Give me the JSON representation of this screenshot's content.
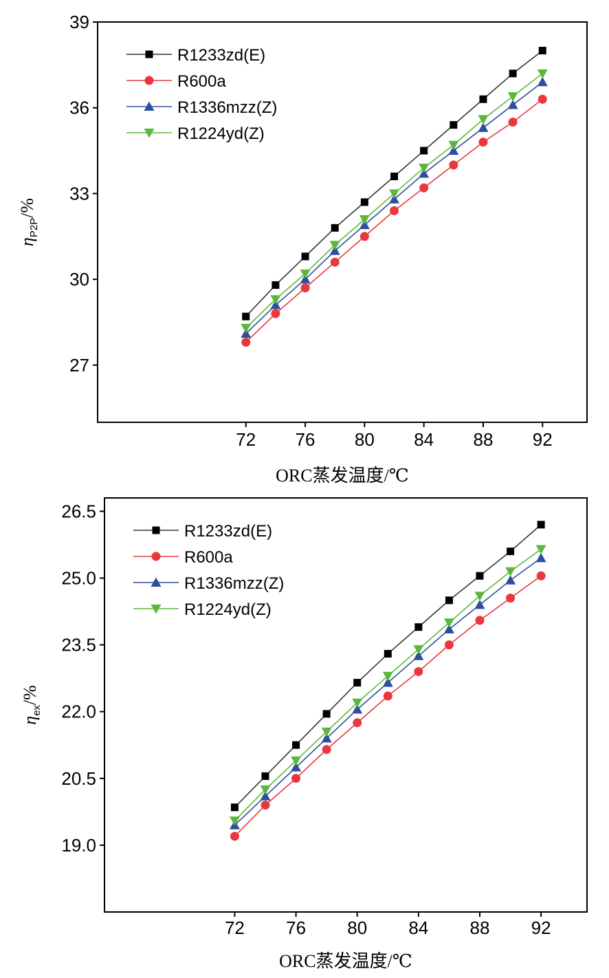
{
  "chart_data": [
    {
      "type": "line",
      "title": "",
      "xlabel": "ORC蒸发温度/℃",
      "ylabel": {
        "symbol": "η",
        "subscript": "P2P",
        "suffix": "/%"
      },
      "xlim": [
        62,
        95
      ],
      "ylim": [
        25,
        39
      ],
      "xticks": [
        72,
        76,
        80,
        84,
        88,
        92
      ],
      "yticks": [
        27,
        30,
        33,
        36,
        39
      ],
      "ytick_labels": [
        "27",
        "30",
        "33",
        "36",
        "39"
      ],
      "legend": "top-left",
      "x": [
        72,
        74,
        76,
        78,
        80,
        82,
        84,
        86,
        88,
        90,
        92
      ],
      "series": [
        {
          "name": "R1233zd(E)",
          "color": "#333333",
          "marker": "square",
          "values": [
            28.7,
            29.8,
            30.8,
            31.8,
            32.7,
            33.6,
            34.5,
            35.4,
            36.3,
            37.2,
            38.0
          ]
        },
        {
          "name": "R600a",
          "color": "#e8383d",
          "marker": "circle",
          "values": [
            27.8,
            28.8,
            29.7,
            30.6,
            31.5,
            32.4,
            33.2,
            34.0,
            34.8,
            35.5,
            36.3
          ]
        },
        {
          "name": "R1336mzz(Z)",
          "color": "#2e4f9e",
          "marker": "triangle-up",
          "values": [
            28.1,
            29.1,
            30.0,
            31.0,
            31.9,
            32.8,
            33.7,
            34.5,
            35.3,
            36.1,
            36.9
          ]
        },
        {
          "name": "R1224yd(Z)",
          "color": "#5cb83c",
          "marker": "triangle-down",
          "values": [
            28.3,
            29.3,
            30.2,
            31.2,
            32.1,
            33.0,
            33.9,
            34.7,
            35.6,
            36.4,
            37.2
          ]
        }
      ]
    },
    {
      "type": "line",
      "title": "",
      "xlabel": "ORC蒸发温度/℃",
      "ylabel": {
        "symbol": "η",
        "subscript": "ex",
        "suffix": "/%"
      },
      "xlim": [
        63.5,
        95
      ],
      "ylim": [
        17.5,
        26.8
      ],
      "xticks": [
        72,
        76,
        80,
        84,
        88,
        92
      ],
      "yticks": [
        19.0,
        20.5,
        22.0,
        23.5,
        25.0,
        26.5
      ],
      "ytick_labels": [
        "19.0",
        "20.5",
        "22.0",
        "23.5",
        "25.0",
        "26.5"
      ],
      "legend": "top-left",
      "x": [
        72,
        74,
        76,
        78,
        80,
        82,
        84,
        86,
        88,
        90,
        92
      ],
      "series": [
        {
          "name": "R1233zd(E)",
          "color": "#333333",
          "marker": "square",
          "values": [
            19.85,
            20.55,
            21.25,
            21.95,
            22.65,
            23.3,
            23.9,
            24.5,
            25.05,
            25.6,
            26.2
          ]
        },
        {
          "name": "R600a",
          "color": "#e8383d",
          "marker": "circle",
          "values": [
            19.2,
            19.9,
            20.5,
            21.15,
            21.75,
            22.35,
            22.9,
            23.5,
            24.05,
            24.55,
            25.05
          ]
        },
        {
          "name": "R1336mzz(Z)",
          "color": "#2e4f9e",
          "marker": "triangle-up",
          "values": [
            19.45,
            20.1,
            20.75,
            21.4,
            22.05,
            22.65,
            23.25,
            23.85,
            24.4,
            24.95,
            25.45
          ]
        },
        {
          "name": "R1224yd(Z)",
          "color": "#5cb83c",
          "marker": "triangle-down",
          "values": [
            19.55,
            20.25,
            20.9,
            21.55,
            22.2,
            22.8,
            23.4,
            24.0,
            24.6,
            25.15,
            25.65
          ]
        }
      ]
    }
  ]
}
